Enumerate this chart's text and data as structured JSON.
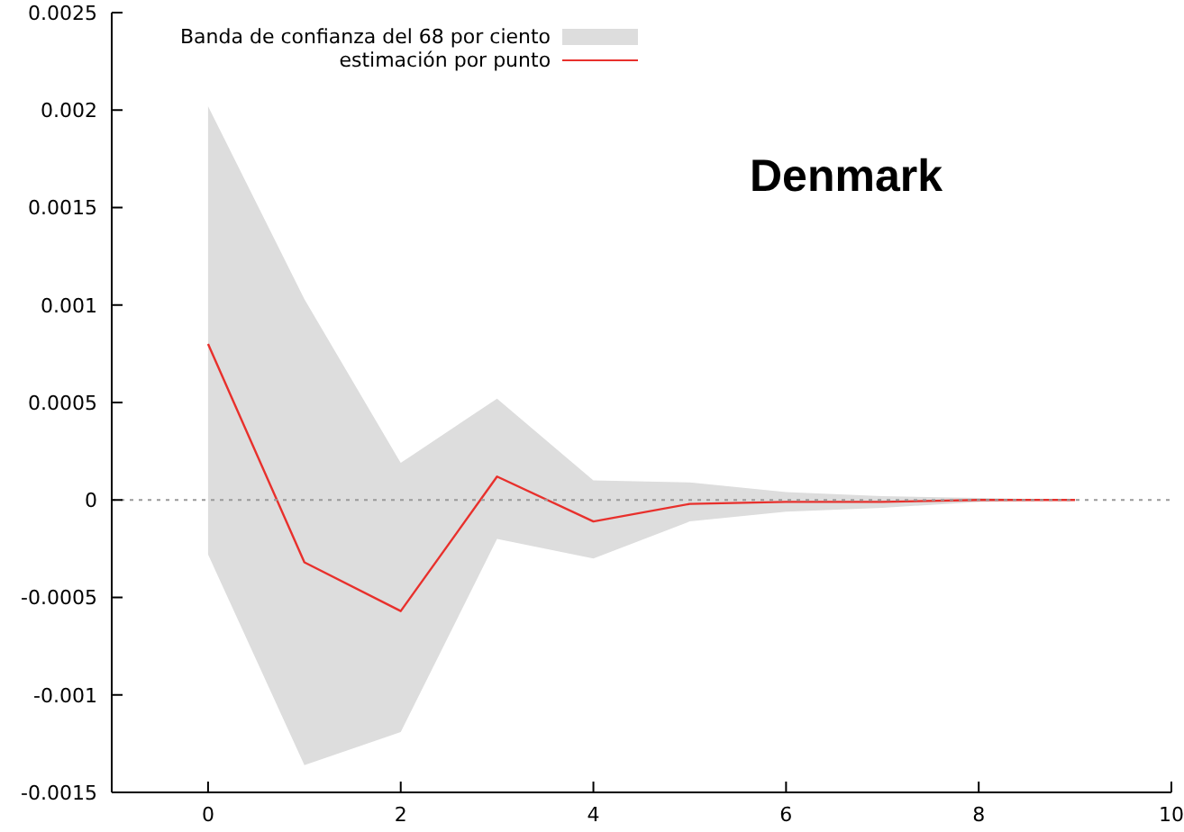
{
  "chart_data": {
    "type": "line",
    "x": [
      0,
      1,
      2,
      3,
      4,
      5,
      6,
      7,
      8,
      9
    ],
    "series": [
      {
        "type": "area",
        "name": "Banda de confianza del 68 por ciento",
        "color": "#dddddd",
        "values": [
          null,
          null,
          null,
          null,
          null,
          null,
          null,
          null,
          null,
          null
        ]
      },
      {
        "name": "estimación por punto",
        "color": "#e8302c",
        "values": [
          0.0008,
          -0.00032,
          -0.00057,
          0.00012,
          -0.00011,
          -2e-05,
          -1e-05,
          -1e-05,
          0,
          0
        ],
        "lower": [
          -0.00028,
          -0.00136,
          -0.00119,
          -0.0002,
          -0.0003,
          -0.00011,
          -6e-05,
          -4e-05,
          -1e-05,
          0
        ],
        "upper": [
          0.00202,
          0.00103,
          0.00019,
          0.00052,
          0.0001,
          9e-05,
          4e-05,
          2e-05,
          1e-05,
          0
        ]
      }
    ],
    "xlim": [
      -1,
      10
    ],
    "xticks": [
      0,
      2,
      4,
      6,
      8,
      10
    ],
    "ylim": [
      -0.0015,
      0.0025
    ],
    "yticks": [
      -0.0015,
      -0.001,
      -0.0005,
      0,
      0.0005,
      0.001,
      0.0015,
      0.002,
      0.0025
    ],
    "ref_lines": [
      {
        "axis": "y",
        "value": 0,
        "color": "#999999",
        "line_style": "dotted"
      }
    ],
    "annotations": [
      "Denmark"
    ],
    "legend": "top",
    "grid": false,
    "marker": "none",
    "line_style": "solid"
  }
}
